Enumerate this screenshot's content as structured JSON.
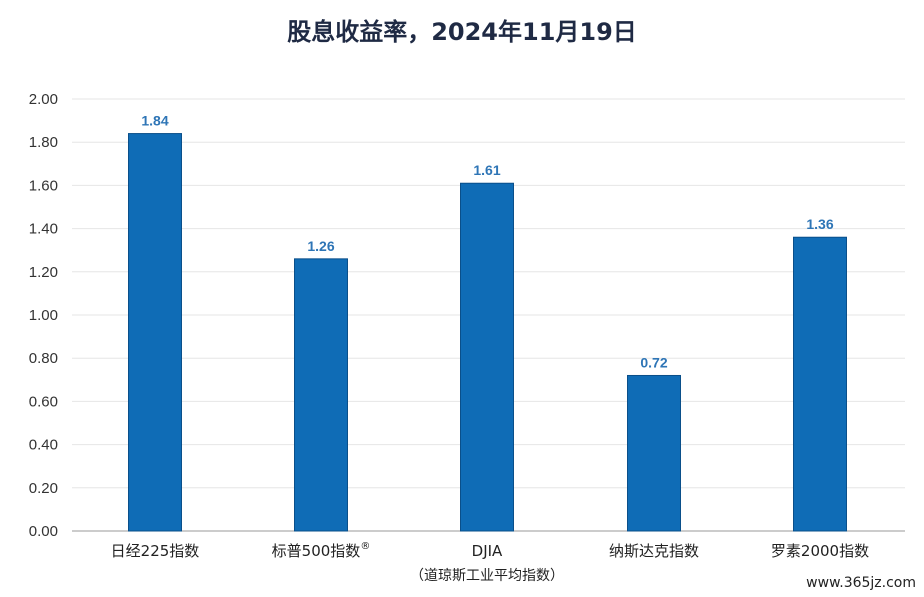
{
  "chart_data": {
    "type": "bar",
    "title": "股息收益率，2024年11月19日",
    "categories": [
      "日经225指数",
      "标普500指数®",
      "DJIA",
      "纳斯达克指数",
      "罗素2000指数"
    ],
    "category_sublabels": [
      "",
      "",
      "（道琼斯工业平均指数）",
      "",
      ""
    ],
    "values": [
      1.84,
      1.26,
      1.61,
      0.72,
      1.36
    ],
    "data_labels": [
      "1.84",
      "1.26",
      "1.61",
      "0.72",
      "1.36"
    ],
    "y_ticks": [
      "0.00",
      "0.20",
      "0.40",
      "0.60",
      "0.80",
      "1.00",
      "1.20",
      "1.40",
      "1.60",
      "1.80",
      "2.00"
    ],
    "ylim": [
      0,
      2.0
    ],
    "xlabel": "",
    "ylabel": "",
    "grid": true,
    "colors": {
      "bar": "#0f6cb6",
      "bar_edge": "#0a4f8a",
      "label": "#2e75b6",
      "grid": "#e6e6e6",
      "axis": "#999999"
    }
  },
  "watermark": "www.365jz.com"
}
